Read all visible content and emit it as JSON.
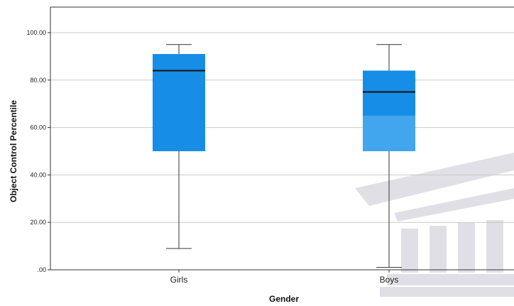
{
  "chart_data": {
    "type": "boxplot",
    "xlabel": "Gender",
    "ylabel": "Object Control Percentile",
    "ylim": [
      0,
      100
    ],
    "yticks": [
      ".00",
      "20.00",
      "40.00",
      "60.00",
      "80.00",
      "100.00"
    ],
    "ytick_values": [
      0,
      20,
      40,
      60,
      80,
      100
    ],
    "grid": true,
    "categories": [
      "Girls",
      "Boys"
    ],
    "boxes": [
      {
        "category": "Girls",
        "min": 9,
        "q1": 50,
        "median": 84,
        "q3": 91,
        "max": 95
      },
      {
        "category": "Boys",
        "min": 1,
        "q1": 50,
        "median": 75,
        "q3": 84,
        "max": 95
      }
    ],
    "colors": {
      "box_fill": "#168de6",
      "box_fill_light": "#42a6ee",
      "median_line": "#111111",
      "whisker": "#333333",
      "grid": "#c8c8c8",
      "axis": "#333333",
      "watermark": "#c9c6d3"
    }
  }
}
